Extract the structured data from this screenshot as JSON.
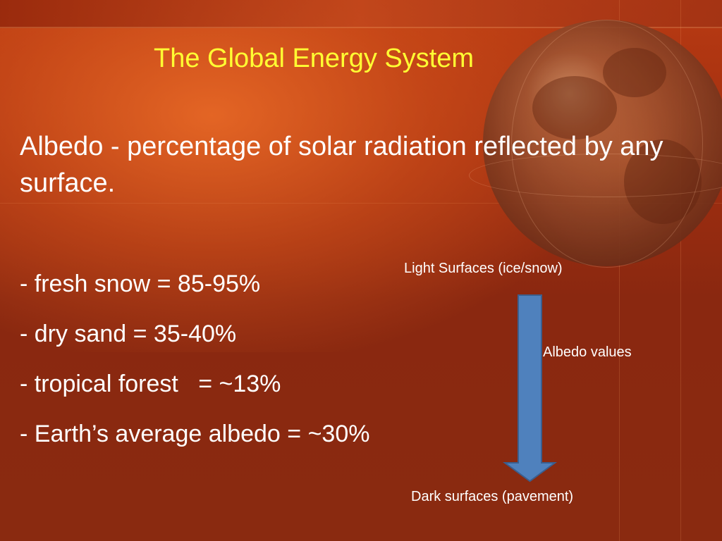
{
  "slide": {
    "title": "The Global Energy System",
    "definition": "Albedo - percentage of solar radiation reflected by any surface.",
    "bullets": [
      "- fresh snow = 85-95%",
      "- dry sand = 35-40%",
      "- tropical forest   = ~13%",
      "- Earth’s average albedo = ~30%"
    ],
    "diagram": {
      "top_label": "Light Surfaces (ice/snow)",
      "side_label": "Albedo values",
      "bottom_label": "Dark surfaces (pavement)"
    }
  },
  "colors": {
    "background": "#8a2810",
    "title": "#ffff33",
    "text": "#ffffff",
    "arrow_fill": "#4f81bd",
    "arrow_stroke": "#3a5f8f"
  },
  "decor": {
    "background_image": "globe-icon"
  }
}
